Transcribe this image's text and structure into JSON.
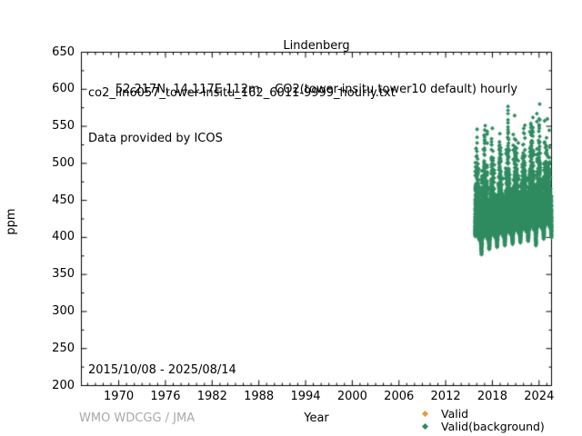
{
  "header": {
    "title": "Lindenberg",
    "subtitle": "52.217N, 14.117E 112m    CO2(tower-insitu tower10 default) hourly"
  },
  "annotations": {
    "source_file": "co2_lin6057_tower-insitu_162_6011-9999_hourly.txt",
    "provider": "Data provided by ICOS",
    "date_range": "2015/10/08 - 2025/08/14"
  },
  "footer": {
    "credit": "WMO WDCGG / JMA"
  },
  "legend": {
    "position": "bottom-right",
    "items": [
      {
        "label": "Valid",
        "color": "#e0a030",
        "marker": "diamond"
      },
      {
        "label": "Valid(background)",
        "color": "#2e8b5f",
        "marker": "diamond"
      }
    ]
  },
  "colors": {
    "axis": "#000000",
    "point_green": "#2e8b5f",
    "point_orange": "#e0a030",
    "credit_gray": "#a9a9a9",
    "background": "#ffffff"
  },
  "chart_data": {
    "type": "scatter",
    "title": "Lindenberg",
    "subtitle": "52.217N, 14.117E 112m    CO2(tower-insitu tower10 default) hourly",
    "xlabel": "Year",
    "ylabel": "ppm",
    "xlim": [
      1965.2,
      2025.6
    ],
    "ylim": [
      200,
      650
    ],
    "grid": false,
    "xticks_major": [
      1970,
      1976,
      1982,
      1988,
      1994,
      2000,
      2006,
      2012,
      2018,
      2024
    ],
    "xtick_minor_step_years": 1,
    "yticks_major": [
      200,
      250,
      300,
      350,
      400,
      450,
      500,
      550,
      600,
      650
    ],
    "ytick_minor_step": 25,
    "legend_position": "bottom-right",
    "series": [
      {
        "name": "Valid(background)",
        "marker": "diamond",
        "color": "#2e8b5f",
        "cadence": "hourly",
        "start_decimal_year": 2015.77,
        "end_decimal_year": 2025.62,
        "description": "Hourly CO2 mole fraction at Lindenberg tower (10 m intake, default). Dense band ~400-500 ppm with winter spikes and summer dips; values estimated from plot.",
        "yearly_envelope": [
          {
            "year": 2015,
            "min": 388,
            "base": 404,
            "max": 520
          },
          {
            "year": 2016,
            "min": 377,
            "base": 404,
            "max": 546
          },
          {
            "year": 2017,
            "min": 384,
            "base": 406,
            "max": 566
          },
          {
            "year": 2018,
            "min": 387,
            "base": 408,
            "max": 540
          },
          {
            "year": 2019,
            "min": 389,
            "base": 410,
            "max": 545
          },
          {
            "year": 2020,
            "min": 391,
            "base": 412,
            "max": 590
          },
          {
            "year": 2021,
            "min": 393,
            "base": 414,
            "max": 562
          },
          {
            "year": 2022,
            "min": 395,
            "base": 416,
            "max": 580
          },
          {
            "year": 2023,
            "min": 389,
            "base": 418,
            "max": 604
          },
          {
            "year": 2024,
            "min": 398,
            "base": 420,
            "max": 592
          },
          {
            "year": 2025,
            "min": 400,
            "base": 422,
            "max": 560
          }
        ]
      }
    ]
  }
}
